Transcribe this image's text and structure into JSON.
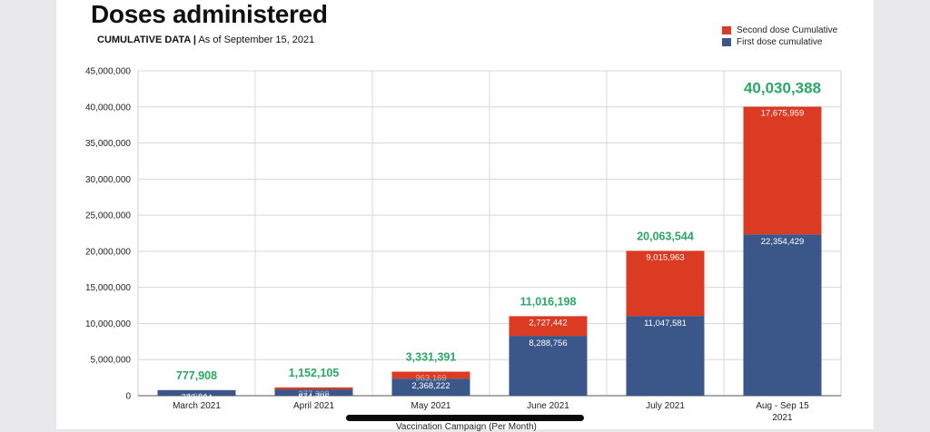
{
  "header": {
    "title": "Doses administered",
    "subtitle_bold": "CUMULATIVE DATA |",
    "subtitle_rest": " As of September 15, 2021"
  },
  "colors": {
    "first": "#3b5789",
    "second": "#dc3b23",
    "total": "#2aa866",
    "grid": "#d8d8d8"
  },
  "chart_data": {
    "type": "bar",
    "stacked": true,
    "title": "Doses administered",
    "xlabel": "Vaccination Campaign (Per Month)",
    "ylabel": "",
    "ylim": [
      0,
      45000000
    ],
    "yticks": [
      0,
      5000000,
      10000000,
      15000000,
      20000000,
      25000000,
      30000000,
      35000000,
      40000000,
      45000000
    ],
    "ytick_labels": [
      "0",
      "5,000,000",
      "10,000,000",
      "15,000,000",
      "20,000,000",
      "25,000,000",
      "30,000,000",
      "35,000,000",
      "40,000,000",
      "45,000,000"
    ],
    "categories": [
      "March 2021",
      "April 2021",
      "May 2021",
      "June 2021",
      "July 2021",
      "Aug - Sep 15 2021"
    ],
    "series": [
      {
        "name": "First dose cumulative",
        "values": [
          773604,
          874796,
          2368222,
          8288756,
          11047581,
          22354429
        ],
        "labels": [
          "773,604",
          "874,796",
          "2,368,222",
          "8,288,756",
          "11,047,581",
          "22,354,429"
        ]
      },
      {
        "name": "Second dose Cumulative",
        "values": [
          4304,
          277309,
          963169,
          2727442,
          9015963,
          17675959
        ],
        "labels": [
          "4,304",
          "277,309",
          "963,169",
          "2,727,442",
          "9,015,963",
          "17,675,959"
        ]
      }
    ],
    "totals": [
      "777,908",
      "1,152,105",
      "3,331,391",
      "11,016,198",
      "20,063,544",
      "40,030,388"
    ],
    "legend": [
      "Second dose Cumulative",
      "First dose cumulative"
    ],
    "legend_position": "top-right"
  }
}
